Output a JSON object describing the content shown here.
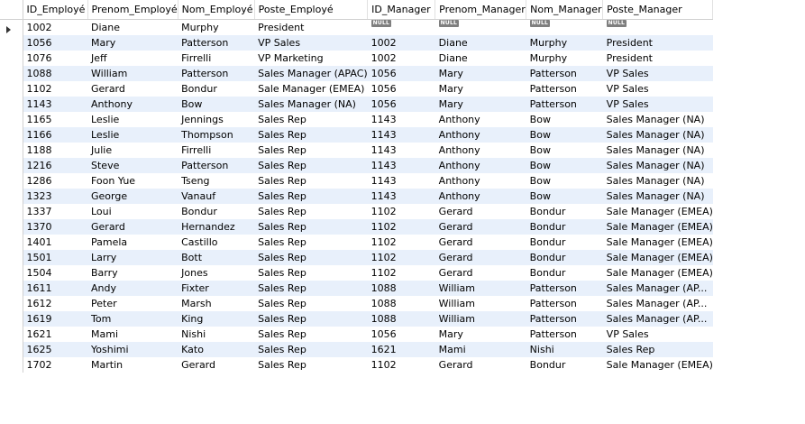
{
  "columns": [
    "ID_Employé",
    "Prenom_Employé",
    "Nom_Employé",
    "Poste_Employé",
    "ID_Manager",
    "Prenom_Manager",
    "Nom_Manager",
    "Poste_Manager"
  ],
  "null_label": "NULL",
  "current_row_index": 0,
  "rows": [
    [
      "1002",
      "Diane",
      "Murphy",
      "President",
      null,
      null,
      null,
      null
    ],
    [
      "1056",
      "Mary",
      "Patterson",
      "VP Sales",
      "1002",
      "Diane",
      "Murphy",
      "President"
    ],
    [
      "1076",
      "Jeff",
      "Firrelli",
      "VP Marketing",
      "1002",
      "Diane",
      "Murphy",
      "President"
    ],
    [
      "1088",
      "William",
      "Patterson",
      "Sales Manager (APAC)",
      "1056",
      "Mary",
      "Patterson",
      "VP Sales"
    ],
    [
      "1102",
      "Gerard",
      "Bondur",
      "Sale Manager (EMEA)",
      "1056",
      "Mary",
      "Patterson",
      "VP Sales"
    ],
    [
      "1143",
      "Anthony",
      "Bow",
      "Sales Manager (NA)",
      "1056",
      "Mary",
      "Patterson",
      "VP Sales"
    ],
    [
      "1165",
      "Leslie",
      "Jennings",
      "Sales Rep",
      "1143",
      "Anthony",
      "Bow",
      "Sales Manager (NA)"
    ],
    [
      "1166",
      "Leslie",
      "Thompson",
      "Sales Rep",
      "1143",
      "Anthony",
      "Bow",
      "Sales Manager (NA)"
    ],
    [
      "1188",
      "Julie",
      "Firrelli",
      "Sales Rep",
      "1143",
      "Anthony",
      "Bow",
      "Sales Manager (NA)"
    ],
    [
      "1216",
      "Steve",
      "Patterson",
      "Sales Rep",
      "1143",
      "Anthony",
      "Bow",
      "Sales Manager (NA)"
    ],
    [
      "1286",
      "Foon Yue",
      "Tseng",
      "Sales Rep",
      "1143",
      "Anthony",
      "Bow",
      "Sales Manager (NA)"
    ],
    [
      "1323",
      "George",
      "Vanauf",
      "Sales Rep",
      "1143",
      "Anthony",
      "Bow",
      "Sales Manager (NA)"
    ],
    [
      "1337",
      "Loui",
      "Bondur",
      "Sales Rep",
      "1102",
      "Gerard",
      "Bondur",
      "Sale Manager (EMEA)"
    ],
    [
      "1370",
      "Gerard",
      "Hernandez",
      "Sales Rep",
      "1102",
      "Gerard",
      "Bondur",
      "Sale Manager (EMEA)"
    ],
    [
      "1401",
      "Pamela",
      "Castillo",
      "Sales Rep",
      "1102",
      "Gerard",
      "Bondur",
      "Sale Manager (EMEA)"
    ],
    [
      "1501",
      "Larry",
      "Bott",
      "Sales Rep",
      "1102",
      "Gerard",
      "Bondur",
      "Sale Manager (EMEA)"
    ],
    [
      "1504",
      "Barry",
      "Jones",
      "Sales Rep",
      "1102",
      "Gerard",
      "Bondur",
      "Sale Manager (EMEA)"
    ],
    [
      "1611",
      "Andy",
      "Fixter",
      "Sales Rep",
      "1088",
      "William",
      "Patterson",
      "Sales Manager (AP..."
    ],
    [
      "1612",
      "Peter",
      "Marsh",
      "Sales Rep",
      "1088",
      "William",
      "Patterson",
      "Sales Manager (AP..."
    ],
    [
      "1619",
      "Tom",
      "King",
      "Sales Rep",
      "1088",
      "William",
      "Patterson",
      "Sales Manager (AP..."
    ],
    [
      "1621",
      "Mami",
      "Nishi",
      "Sales Rep",
      "1056",
      "Mary",
      "Patterson",
      "VP Sales"
    ],
    [
      "1625",
      "Yoshimi",
      "Kato",
      "Sales Rep",
      "1621",
      "Mami",
      "Nishi",
      "Sales Rep"
    ],
    [
      "1702",
      "Martin",
      "Gerard",
      "Sales Rep",
      "1102",
      "Gerard",
      "Bondur",
      "Sale Manager (EMEA)"
    ]
  ]
}
